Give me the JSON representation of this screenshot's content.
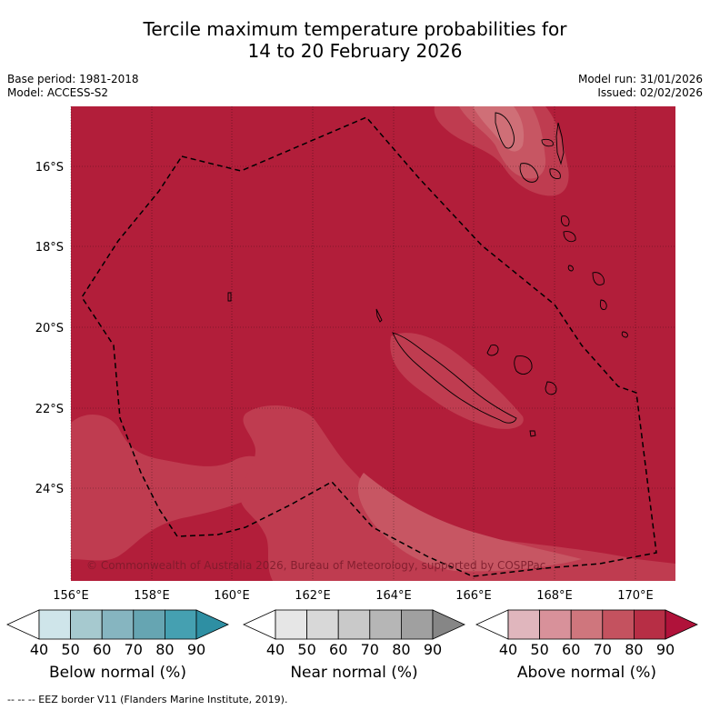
{
  "header": {
    "title_line1": "Tercile maximum temperature probabilities for",
    "title_line2": "14 to 20 February 2026",
    "base_period": "Base period: 1981-2018",
    "model": "Model: ACCESS-S2",
    "model_run": "Model run: 31/01/2026",
    "issued": "Issued: 02/02/2026"
  },
  "map": {
    "lat_ticks": [
      "16°S",
      "18°S",
      "20°S",
      "22°S",
      "24°S"
    ],
    "lon_ticks": [
      "156°E",
      "158°E",
      "160°E",
      "162°E",
      "164°E",
      "166°E",
      "168°E",
      "170°E"
    ],
    "copyright": "© Commonwealth of Australia 2026, Bureau of Meteorology, supported by COSPPac",
    "colors": {
      "above_90": "#b21e3a",
      "above_80": "#bf3c50",
      "above_70": "#c75663",
      "above_60": "#cf6f77",
      "land_outline": "#000000",
      "eez_border": "#000000"
    }
  },
  "colorbars": [
    {
      "title": "Below normal (%)",
      "ticks": [
        "40",
        "50",
        "60",
        "70",
        "80",
        "90"
      ],
      "colors": [
        "#ffffff",
        "#cfe5ea",
        "#a6c9cf",
        "#86b5c0",
        "#66a5b2",
        "#45a0b1",
        "#2e8fa3"
      ]
    },
    {
      "title": "Near normal (%)",
      "ticks": [
        "40",
        "50",
        "60",
        "70",
        "80",
        "90"
      ],
      "colors": [
        "#ffffff",
        "#e6e6e6",
        "#d8d8d8",
        "#c9c9c9",
        "#b6b6b6",
        "#a0a0a0",
        "#868686"
      ]
    },
    {
      "title": "Above normal (%)",
      "ticks": [
        "40",
        "50",
        "60",
        "70",
        "80",
        "90"
      ],
      "colors": [
        "#ffffff",
        "#e0b6bd",
        "#d8919a",
        "#cf767d",
        "#c4525f",
        "#b72e45",
        "#b0123a"
      ]
    }
  ],
  "footer": {
    "legend_line": "--  --  -- EEZ border V11 (Flanders Marine Institute, 2019)."
  }
}
